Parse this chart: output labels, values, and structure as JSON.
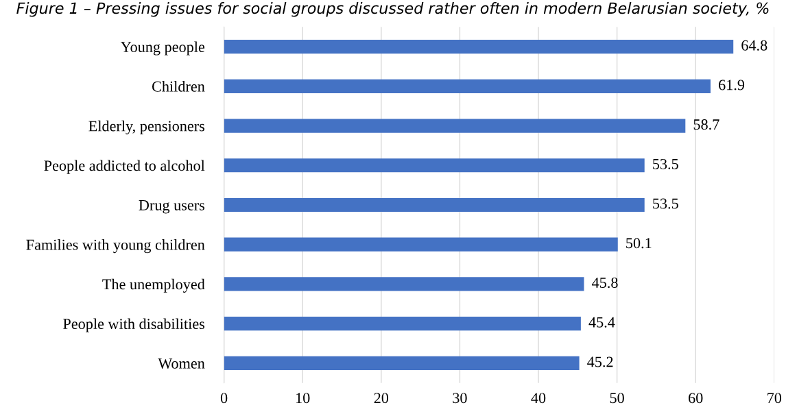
{
  "chart_data": {
    "type": "bar",
    "orientation": "horizontal",
    "title": "Figure 1 – Pressing issues for social groups discussed rather often in modern Belarusian society, %",
    "categories": [
      "Young people",
      "Children",
      "Elderly, pensioners",
      "People addicted to alcohol",
      "Drug users",
      "Families with young children",
      "The unemployed",
      "People with disabilities",
      "Women"
    ],
    "values": [
      64.8,
      61.9,
      58.7,
      53.5,
      53.5,
      50.1,
      45.8,
      45.4,
      45.2
    ],
    "color": "#4472c4",
    "data_labels": true,
    "grid": "x",
    "xlim": [
      0,
      70
    ],
    "xticks": [
      0,
      10,
      20,
      30,
      40,
      50,
      60,
      70
    ]
  }
}
